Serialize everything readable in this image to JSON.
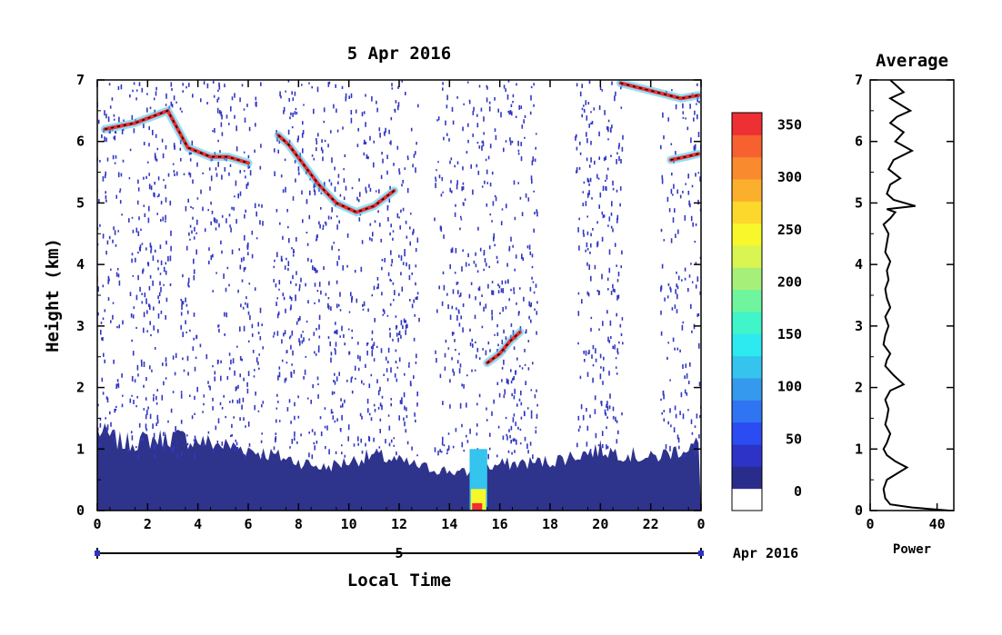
{
  "chart_data": [
    {
      "type": "heatmap",
      "title": "5 Apr 2016",
      "xlabel": "Local Time",
      "ylabel": "Height (km)",
      "xlim": [
        0,
        24
      ],
      "ylim": [
        0,
        7
      ],
      "x_ticks": [
        "0",
        "2",
        "4",
        "6",
        "8",
        "10",
        "12",
        "14",
        "16",
        "18",
        "20",
        "22",
        "0"
      ],
      "y_ticks": [
        "0",
        "1",
        "2",
        "3",
        "4",
        "5",
        "6",
        "7"
      ],
      "date_axis": {
        "day": "5",
        "month_year": "Apr 2016"
      },
      "colorbar": {
        "ticks": [
          "0",
          "50",
          "100",
          "150",
          "200",
          "250",
          "300",
          "350"
        ],
        "range": [
          0,
          380
        ],
        "colors": [
          "#ffffff",
          "#2a2c8c",
          "#2c33c6",
          "#2a4cf2",
          "#2f74f2",
          "#3599ee",
          "#34c4ee",
          "#2de9f0",
          "#3ff5c9",
          "#6ef59d",
          "#a6f07a",
          "#d8f552",
          "#f7f72c",
          "#fcd82c",
          "#fbb02d",
          "#f98a2e",
          "#f6612f",
          "#ee2f33"
        ]
      },
      "features": [
        {
          "name": "cloud layer",
          "points": [
            [
              0.3,
              6.2
            ],
            [
              1.5,
              6.3
            ],
            [
              2.8,
              6.5
            ],
            [
              3.6,
              5.9
            ],
            [
              4.5,
              5.75
            ],
            [
              5.2,
              5.75
            ],
            [
              6.0,
              5.65
            ]
          ]
        },
        {
          "name": "cloud layer",
          "points": [
            [
              7.2,
              6.1
            ],
            [
              7.6,
              5.95
            ],
            [
              8.8,
              5.3
            ],
            [
              9.5,
              5.0
            ],
            [
              10.3,
              4.85
            ],
            [
              11.0,
              4.95
            ],
            [
              11.8,
              5.2
            ]
          ]
        },
        {
          "name": "cloud layer",
          "points": [
            [
              15.5,
              2.4
            ],
            [
              16.0,
              2.55
            ],
            [
              16.4,
              2.75
            ],
            [
              16.8,
              2.9
            ]
          ]
        },
        {
          "name": "cloud layer",
          "points": [
            [
              22.8,
              5.7
            ],
            [
              23.4,
              5.75
            ],
            [
              23.9,
              5.8
            ]
          ]
        },
        {
          "name": "cloud layer",
          "points": [
            [
              20.8,
              6.95
            ],
            [
              23.2,
              6.7
            ],
            [
              23.9,
              6.75
            ]
          ]
        }
      ],
      "boundary_layer_top": [
        [
          0,
          1.3
        ],
        [
          1.0,
          1.1
        ],
        [
          3.0,
          1.2
        ],
        [
          6.0,
          1.0
        ],
        [
          9.0,
          0.7
        ],
        [
          11.0,
          0.9
        ],
        [
          13.0,
          0.7
        ],
        [
          14.8,
          0.6
        ],
        [
          16.0,
          0.75
        ],
        [
          18.0,
          0.8
        ],
        [
          20.0,
          1.0
        ],
        [
          22.0,
          0.85
        ],
        [
          24.0,
          1.1
        ]
      ]
    },
    {
      "type": "line",
      "title": "Average",
      "xlabel": "Power",
      "xlim": [
        0,
        50
      ],
      "ylim": [
        0,
        7
      ],
      "x_ticks": [
        "0",
        "40"
      ],
      "y_ticks": [
        "0",
        "1",
        "2",
        "3",
        "4",
        "5",
        "6",
        "7"
      ],
      "series": [
        {
          "x": [
            47,
            25,
            12,
            9,
            8,
            10,
            22,
            15,
            10,
            8,
            10,
            12,
            9,
            10,
            11,
            9,
            12,
            20,
            14,
            9,
            10,
            12,
            8,
            9,
            11,
            9,
            12,
            10,
            9,
            11,
            10,
            12,
            9,
            10,
            11,
            8,
            12,
            15,
            10,
            27,
            14,
            10,
            12,
            18,
            11,
            14,
            25,
            15,
            20,
            12,
            16,
            24,
            18,
            12,
            20,
            16,
            12
          ],
          "y": [
            0.0,
            0.05,
            0.1,
            0.2,
            0.35,
            0.5,
            0.7,
            0.8,
            0.9,
            1.0,
            1.1,
            1.25,
            1.4,
            1.5,
            1.65,
            1.8,
            1.95,
            2.05,
            2.2,
            2.35,
            2.45,
            2.55,
            2.7,
            2.85,
            3.0,
            3.15,
            3.3,
            3.45,
            3.6,
            3.75,
            3.9,
            4.05,
            4.2,
            4.35,
            4.5,
            4.65,
            4.75,
            4.85,
            4.9,
            4.95,
            5.05,
            5.15,
            5.3,
            5.4,
            5.55,
            5.7,
            5.85,
            6.0,
            6.15,
            6.3,
            6.4,
            6.5,
            6.6,
            6.7,
            6.8,
            6.9,
            7.0
          ]
        }
      ]
    }
  ]
}
